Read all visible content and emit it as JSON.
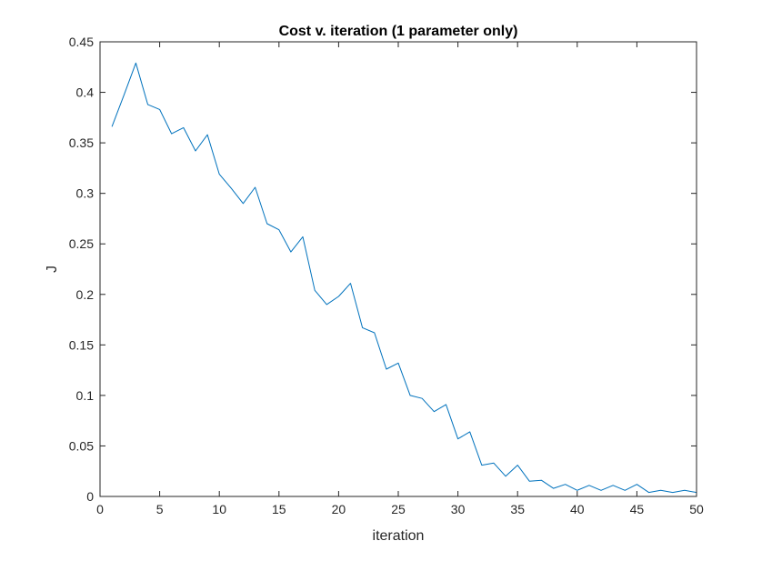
{
  "chart_data": {
    "type": "line",
    "title": "Cost v. iteration (1 parameter only)",
    "xlabel": "iteration",
    "ylabel": "J",
    "xlim": [
      0,
      50
    ],
    "ylim": [
      0,
      0.45
    ],
    "xticks": [
      0,
      5,
      10,
      15,
      20,
      25,
      30,
      35,
      40,
      45,
      50
    ],
    "xtick_labels": [
      "0",
      "5",
      "10",
      "15",
      "20",
      "25",
      "30",
      "35",
      "40",
      "45",
      "50"
    ],
    "yticks": [
      0,
      0.05,
      0.1,
      0.15,
      0.2,
      0.25,
      0.3,
      0.35,
      0.4,
      0.45
    ],
    "ytick_labels": [
      "0",
      "0.05",
      "0.1",
      "0.15",
      "0.2",
      "0.25",
      "0.3",
      "0.35",
      "0.4",
      "0.45"
    ],
    "grid": false,
    "box": true,
    "series": [
      {
        "color": "#0072BD",
        "x": [
          1,
          2,
          3,
          4,
          5,
          6,
          7,
          8,
          9,
          10,
          11,
          12,
          13,
          14,
          15,
          16,
          17,
          18,
          19,
          20,
          21,
          22,
          23,
          24,
          25,
          26,
          27,
          28,
          29,
          30,
          31,
          32,
          33,
          34,
          35,
          36,
          37,
          38,
          39,
          40,
          41,
          42,
          43,
          44,
          45,
          46,
          47,
          48,
          49,
          50
        ],
        "y": [
          0.366,
          0.397,
          0.429,
          0.388,
          0.383,
          0.359,
          0.365,
          0.342,
          0.358,
          0.319,
          0.305,
          0.29,
          0.306,
          0.27,
          0.264,
          0.242,
          0.257,
          0.204,
          0.19,
          0.198,
          0.211,
          0.167,
          0.162,
          0.126,
          0.132,
          0.1,
          0.097,
          0.084,
          0.091,
          0.057,
          0.064,
          0.031,
          0.033,
          0.02,
          0.031,
          0.015,
          0.016,
          0.008,
          0.012,
          0.006,
          0.011,
          0.006,
          0.011,
          0.006,
          0.012,
          0.004,
          0.006,
          0.004,
          0.006,
          0.004
        ]
      }
    ]
  }
}
